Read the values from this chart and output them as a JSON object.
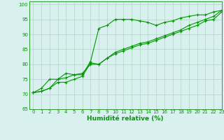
{
  "xlabel": "Humidité relative (%)",
  "background_color": "#d8f0ee",
  "grid_color": "#b8d8cc",
  "line_color": "#009900",
  "spine_color": "#339933",
  "xlim": [
    -0.5,
    23
  ],
  "ylim": [
    65,
    101
  ],
  "yticks": [
    65,
    70,
    75,
    80,
    85,
    90,
    95,
    100
  ],
  "xticks": [
    0,
    1,
    2,
    3,
    4,
    5,
    6,
    7,
    8,
    9,
    10,
    11,
    12,
    13,
    14,
    15,
    16,
    17,
    18,
    19,
    20,
    21,
    22,
    23
  ],
  "series1_x": [
    0,
    1,
    2,
    3,
    4,
    5,
    6,
    7,
    8,
    9,
    10,
    11,
    12,
    13,
    14,
    15,
    16,
    17,
    18,
    19,
    20,
    21,
    22,
    23
  ],
  "series1_y": [
    70.5,
    72,
    75,
    75,
    77,
    76.5,
    76.5,
    81,
    92,
    93,
    95,
    95,
    95,
    94.5,
    94,
    93,
    94,
    94.5,
    95.5,
    96,
    96.5,
    96.5,
    97.5,
    98
  ],
  "series2_x": [
    0,
    1,
    2,
    3,
    4,
    5,
    6,
    7,
    8,
    9,
    10,
    11,
    12,
    13,
    14,
    15,
    16,
    17,
    18,
    19,
    20,
    21,
    22,
    23
  ],
  "series2_y": [
    70.5,
    71,
    72,
    74,
    74,
    75,
    76,
    80.5,
    80,
    82,
    83.5,
    84.5,
    85.5,
    86.5,
    87,
    88,
    89,
    90,
    91,
    92,
    93,
    94.5,
    95,
    97.5
  ],
  "series3_x": [
    0,
    1,
    2,
    3,
    4,
    5,
    6,
    7,
    8,
    9,
    10,
    11,
    12,
    13,
    14,
    15,
    16,
    17,
    18,
    19,
    20,
    21,
    22,
    23
  ],
  "series3_y": [
    70.5,
    71,
    72,
    75,
    75.5,
    76.5,
    77,
    80,
    80,
    82,
    84,
    85,
    86,
    87,
    87.5,
    88.5,
    89.5,
    90.5,
    91.5,
    93,
    94,
    95,
    96,
    98
  ],
  "xlabel_fontsize": 6.5,
  "tick_fontsize": 5.0
}
